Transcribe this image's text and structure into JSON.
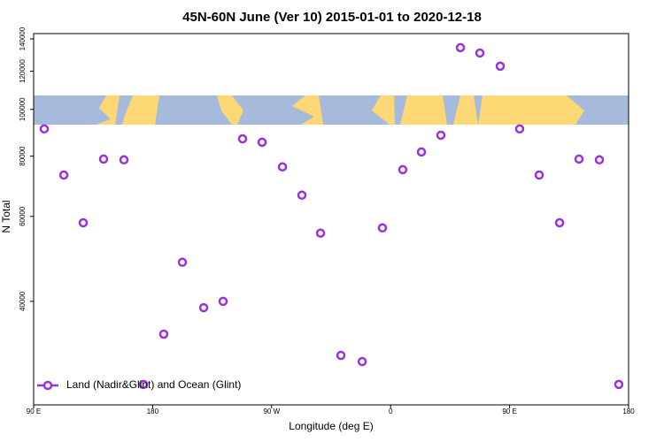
{
  "chart_data": {
    "type": "scatter",
    "title": "45N-60N June (Ver 10)   2015-01-01 to 2020-12-18",
    "x_label": "Longitude (deg E)",
    "y_label": "N Total",
    "x": [
      98.0,
      112.8,
      127.5,
      142.9,
      158.3,
      173.0,
      188.4,
      202.5,
      218.6,
      233.3,
      248.0,
      262.8,
      278.2,
      292.9,
      307.0,
      322.4,
      338.5,
      353.8,
      369.2,
      383.3,
      398.0,
      412.8,
      427.5,
      442.9,
      457.6,
      472.4,
      487.8,
      502.5,
      517.9,
      532.6
    ],
    "series": [
      {
        "name": "Land (Nadir&Glint) and Ocean (Glint)",
        "color": "#9b30e0",
        "values": [
          91100,
          73100,
          58200,
          78900,
          78600,
          26900,
          34200,
          48200,
          38800,
          40000,
          86900,
          85500,
          76000,
          66400,
          55400,
          30900,
          30000,
          56800,
          75000,
          81600,
          88400,
          134300,
          130900,
          122900,
          91100,
          73100,
          58200,
          78900,
          78600,
          26900
        ]
      }
    ],
    "xlim": [
      90,
      540
    ],
    "xticks": [
      {
        "value": 90,
        "label": "90 E"
      },
      180,
      {
        "value": 270,
        "label": "90 W"
      },
      {
        "value": 360,
        "label": "0"
      },
      {
        "value": 450,
        "label": "90 E"
      },
      {
        "value": 540,
        "label": "180"
      }
    ],
    "ylim": [
      24400,
      143600
    ],
    "ylog": true,
    "yticks": [
      40000,
      60000,
      80000,
      100000,
      120000,
      140000
    ],
    "legend": "bottom-left"
  }
}
